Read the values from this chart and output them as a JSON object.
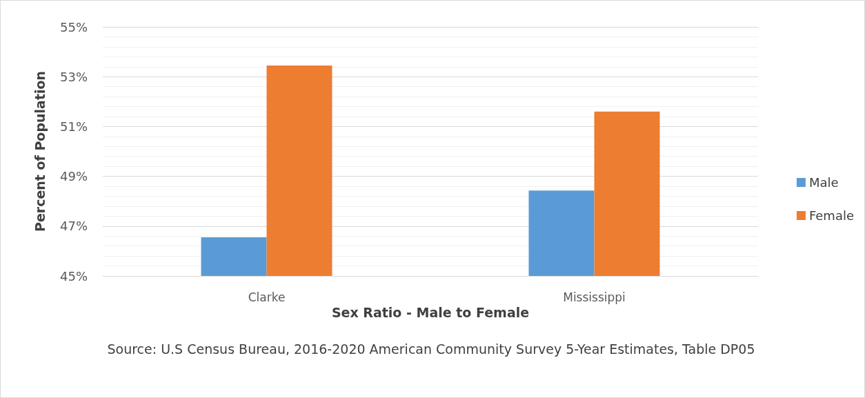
{
  "chart_data": {
    "type": "bar",
    "xlabel": "Sex Ratio - Male to Female",
    "ylabel": "Percent of Population",
    "categories": [
      "Clarke",
      "Mississippi"
    ],
    "series": [
      {
        "name": "Male",
        "color": "#5b9bd5",
        "values": [
          46.55,
          48.43
        ]
      },
      {
        "name": "Female",
        "color": "#ed7d31",
        "values": [
          53.45,
          51.6
        ]
      }
    ],
    "ylim": [
      45,
      55
    ],
    "yticks": [
      {
        "value": 45,
        "label": "45%"
      },
      {
        "value": 47,
        "label": "47%"
      },
      {
        "value": 49,
        "label": "49%"
      },
      {
        "value": 51,
        "label": "51%"
      },
      {
        "value": 53,
        "label": "53%"
      },
      {
        "value": 55,
        "label": "55%"
      }
    ],
    "grid": "y",
    "legend": "right",
    "annotations": [
      "Source: U.S Census Bureau, 2016-2020 American Community Survey 5-Year Estimates, Table DP05"
    ]
  }
}
